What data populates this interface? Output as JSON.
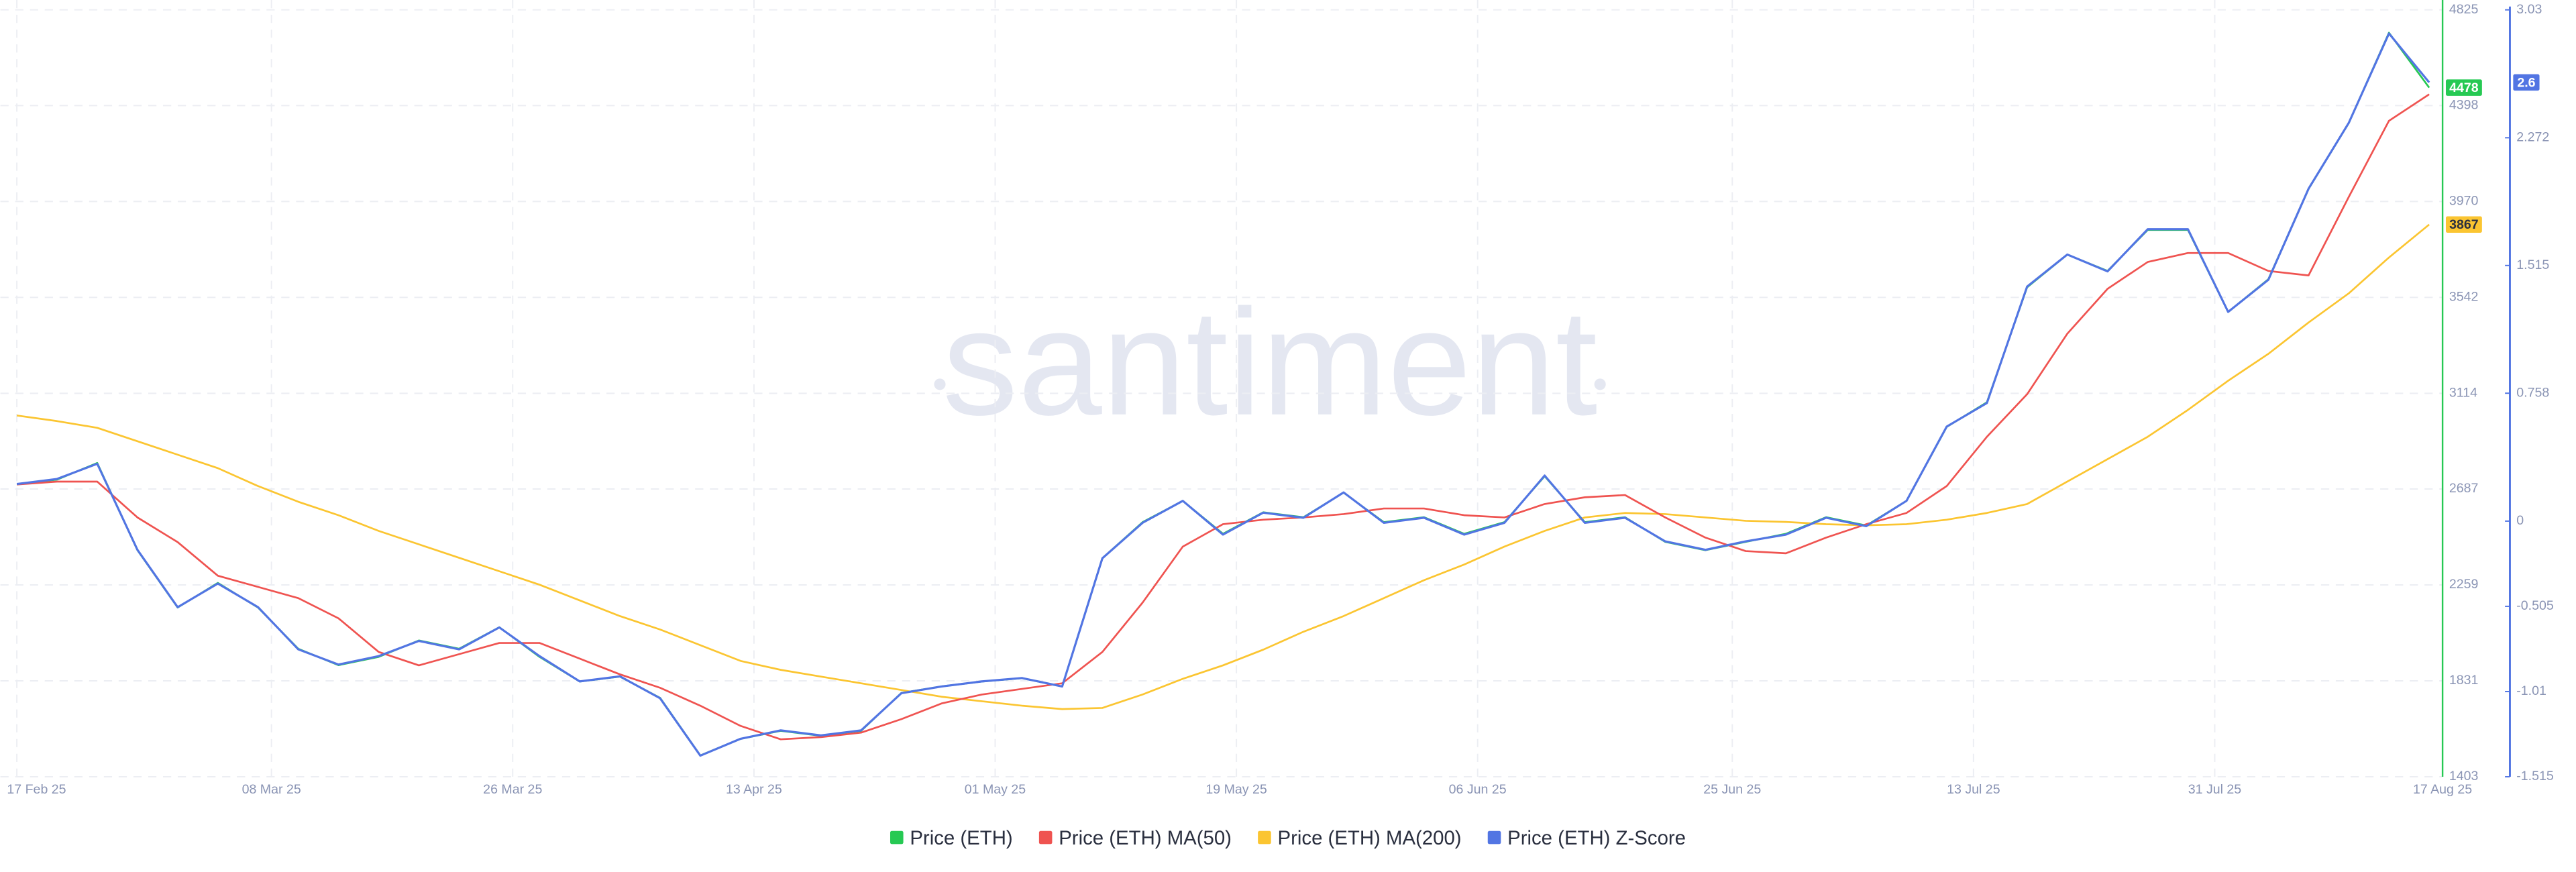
{
  "chart_data": {
    "type": "line",
    "watermark": "santiment",
    "x": [
      "17 Feb 25",
      "20 Feb 25",
      "23 Feb 25",
      "26 Feb 25",
      "01 Mar 25",
      "04 Mar 25",
      "07 Mar 25",
      "10 Mar 25",
      "13 Mar 25",
      "16 Mar 25",
      "19 Mar 25",
      "22 Mar 25",
      "25 Mar 25",
      "28 Mar 25",
      "31 Mar 25",
      "03 Apr 25",
      "06 Apr 25",
      "09 Apr 25",
      "12 Apr 25",
      "15 Apr 25",
      "18 Apr 25",
      "21 Apr 25",
      "24 Apr 25",
      "27 Apr 25",
      "30 Apr 25",
      "03 May 25",
      "06 May 25",
      "09 May 25",
      "12 May 25",
      "15 May 25",
      "18 May 25",
      "21 May 25",
      "24 May 25",
      "27 May 25",
      "30 May 25",
      "02 Jun 25",
      "05 Jun 25",
      "08 Jun 25",
      "11 Jun 25",
      "14 Jun 25",
      "17 Jun 25",
      "20 Jun 25",
      "23 Jun 25",
      "26 Jun 25",
      "29 Jun 25",
      "02 Jul 25",
      "05 Jul 25",
      "08 Jul 25",
      "11 Jul 25",
      "14 Jul 25",
      "17 Jul 25",
      "20 Jul 25",
      "23 Jul 25",
      "26 Jul 25",
      "29 Jul 25",
      "01 Aug 25",
      "04 Aug 25",
      "07 Aug 25",
      "10 Aug 25",
      "13 Aug 25",
      "16 Aug 25"
    ],
    "xlim": [
      "17 Feb 25",
      "17 Aug 25"
    ],
    "xticks": [
      "17 Feb 25",
      "08 Mar 25",
      "26 Mar 25",
      "13 Apr 25",
      "01 May 25",
      "19 May 25",
      "06 Jun 25",
      "25 Jun 25",
      "13 Jul 25",
      "31 Jul 25",
      "17 Aug 25"
    ],
    "ylim": [
      1403,
      4825
    ],
    "yticks": [
      1403,
      1831,
      2259,
      2687,
      3114,
      3542,
      3970,
      4398,
      4825
    ],
    "y2lim": [
      -1.515,
      3.03
    ],
    "y2ticks": [
      -1.515,
      -1.01,
      -0.505,
      0,
      0.758,
      1.515,
      2.272,
      3.03
    ],
    "grid": true,
    "legend": "bottom",
    "series": [
      {
        "name": "Price (ETH)",
        "color": "#26c953",
        "last_value_badge": true,
        "values": [
          2707,
          2729,
          2803,
          2414,
          2158,
          2268,
          2158,
          1974,
          1901,
          1938,
          2011,
          1974,
          2070,
          1938,
          1828,
          1850,
          1755,
          1498,
          1572,
          1608,
          1586,
          1608,
          1777,
          1806,
          1828,
          1843,
          1806,
          2378,
          2539,
          2634,
          2487,
          2583,
          2561,
          2671,
          2539,
          2561,
          2487,
          2539,
          2744,
          2539,
          2561,
          2451,
          2414,
          2451,
          2487,
          2561,
          2524,
          2634,
          2964,
          3074,
          3587,
          3733,
          3660,
          3843,
          3843,
          3477,
          3623,
          4026,
          4320,
          4723,
          4478
        ]
      },
      {
        "name": "Price (ETH) MA(50)",
        "color": "#ef5350",
        "last_value_badge": false,
        "values": [
          2707,
          2720,
          2720,
          2560,
          2450,
          2300,
          2250,
          2200,
          2110,
          1960,
          1900,
          1950,
          2000,
          2000,
          1930,
          1860,
          1800,
          1720,
          1630,
          1570,
          1580,
          1600,
          1660,
          1730,
          1770,
          1795,
          1820,
          1960,
          2180,
          2430,
          2530,
          2550,
          2560,
          2575,
          2600,
          2600,
          2570,
          2560,
          2620,
          2650,
          2660,
          2560,
          2470,
          2410,
          2400,
          2470,
          2530,
          2580,
          2700,
          2920,
          3110,
          3380,
          3580,
          3700,
          3740,
          3740,
          3660,
          3640,
          3990,
          4330,
          4448
        ]
      },
      {
        "name": "Price (ETH) MA(200)",
        "color": "#fbc531",
        "last_value_badge": true,
        "values": [
          3015,
          2990,
          2960,
          2900,
          2840,
          2780,
          2700,
          2630,
          2570,
          2500,
          2440,
          2380,
          2320,
          2260,
          2190,
          2120,
          2060,
          1990,
          1920,
          1880,
          1850,
          1820,
          1790,
          1760,
          1740,
          1720,
          1705,
          1710,
          1770,
          1840,
          1900,
          1970,
          2050,
          2120,
          2200,
          2280,
          2350,
          2430,
          2500,
          2560,
          2580,
          2575,
          2560,
          2545,
          2540,
          2530,
          2525,
          2530,
          2550,
          2580,
          2620,
          2720,
          2820,
          2920,
          3040,
          3170,
          3290,
          3430,
          3560,
          3720,
          3867
        ]
      },
      {
        "name": "Price (ETH) Z-Score",
        "color": "#5275e3",
        "axis": "y2",
        "last_value_badge": true,
        "values": [
          0.22,
          0.25,
          0.34,
          -0.17,
          -0.51,
          -0.37,
          -0.51,
          -0.76,
          -0.85,
          -0.8,
          -0.71,
          -0.76,
          -0.63,
          -0.8,
          -0.95,
          -0.92,
          -1.05,
          -1.39,
          -1.29,
          -1.24,
          -1.27,
          -1.24,
          -1.02,
          -0.98,
          -0.95,
          -0.93,
          -0.98,
          -0.22,
          -0.01,
          0.12,
          -0.08,
          0.05,
          0.02,
          0.17,
          -0.01,
          0.02,
          -0.08,
          -0.01,
          0.27,
          -0.01,
          0.02,
          -0.12,
          -0.17,
          -0.12,
          -0.08,
          0.02,
          -0.03,
          0.12,
          0.56,
          0.7,
          1.39,
          1.58,
          1.48,
          1.73,
          1.73,
          1.24,
          1.43,
          1.97,
          2.36,
          2.89,
          2.6
        ]
      }
    ]
  }
}
